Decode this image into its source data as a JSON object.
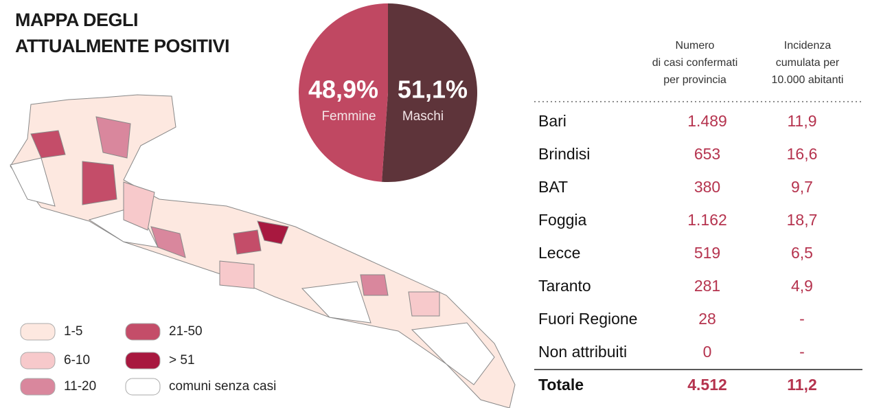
{
  "map": {
    "title": [
      "MAPPA DEGLI",
      "ATTUALMENTE POSITIVI"
    ],
    "legend": [
      {
        "label": "1-5",
        "color": "#fde8e0"
      },
      {
        "label": "6-10",
        "color": "#f7c9cb"
      },
      {
        "label": "11-20",
        "color": "#d9879d"
      },
      {
        "label": "21-50",
        "color": "#c44d69"
      },
      {
        "label": "> 51",
        "color": "#a8183f"
      },
      {
        "label": "comuni senza casi",
        "color": "#ffffff"
      }
    ]
  },
  "chart_data": {
    "type": "pie",
    "categories": [
      "Femmine",
      "Maschi"
    ],
    "values": [
      48.9,
      51.1
    ],
    "value_labels": [
      "48,9%",
      "51,1%"
    ],
    "colors": [
      "#c04862",
      "#5e343a"
    ]
  },
  "table": {
    "header": [
      [
        "Numero",
        "di casi confermati",
        "per provincia"
      ],
      [
        "Incidenza",
        "cumulata per",
        "10.000 abitanti"
      ]
    ],
    "rows": [
      [
        "Bari",
        "1.489",
        "11,9"
      ],
      [
        "Brindisi",
        "653",
        "16,6"
      ],
      [
        "BAT",
        "380",
        "9,7"
      ],
      [
        "Foggia",
        "1.162",
        "18,7"
      ],
      [
        "Lecce",
        "519",
        "6,5"
      ],
      [
        "Taranto",
        "281",
        "4,9"
      ],
      [
        "Fuori Regione",
        "28",
        "-"
      ],
      [
        "Non attribuiti",
        "0",
        "-"
      ]
    ],
    "total": [
      "Totale",
      "4.512",
      "11,2"
    ]
  }
}
